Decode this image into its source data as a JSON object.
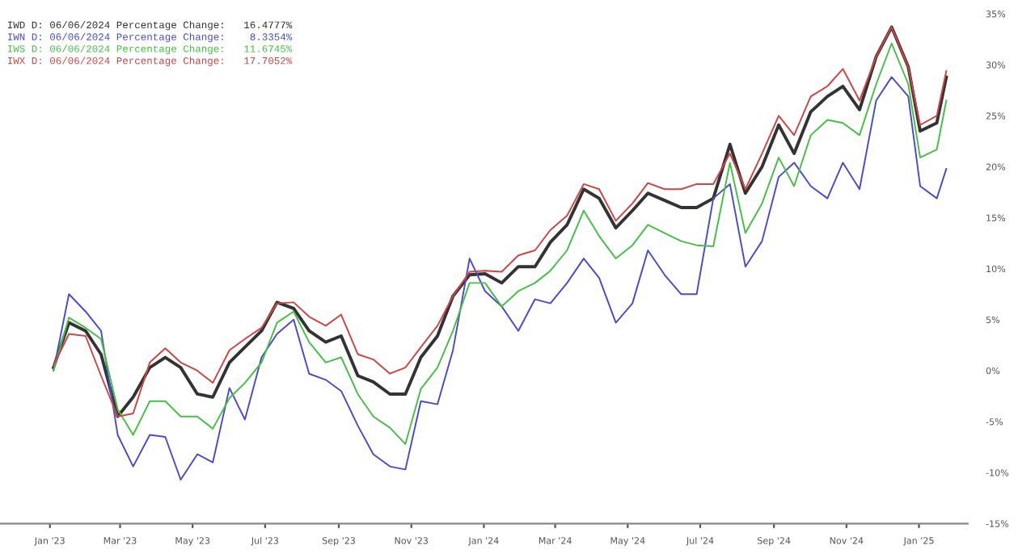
{
  "chart_data": {
    "type": "line",
    "x": [
      "2023-01-04",
      "2023-01-17",
      "2023-01-31",
      "2023-02-13",
      "2023-02-27",
      "2023-03-12",
      "2023-03-26",
      "2023-04-08",
      "2023-04-21",
      "2023-05-05",
      "2023-05-18",
      "2023-06-01",
      "2023-06-14",
      "2023-06-28",
      "2023-07-11",
      "2023-07-25",
      "2023-08-07",
      "2023-08-21",
      "2023-09-03",
      "2023-09-17",
      "2023-09-30",
      "2023-10-14",
      "2023-10-27",
      "2023-11-09",
      "2023-11-23",
      "2023-12-06",
      "2023-12-20",
      "2024-01-02",
      "2024-01-16",
      "2024-01-30",
      "2024-02-13",
      "2024-02-26",
      "2024-03-11",
      "2024-03-25",
      "2024-04-07",
      "2024-04-21",
      "2024-05-05",
      "2024-05-18",
      "2024-06-01",
      "2024-06-15",
      "2024-06-28",
      "2024-07-12",
      "2024-07-26",
      "2024-08-08",
      "2024-08-22",
      "2024-09-05",
      "2024-09-18",
      "2024-10-02",
      "2024-10-16",
      "2024-10-29",
      "2024-11-12",
      "2024-11-26",
      "2024-12-09",
      "2024-12-23",
      "2025-01-02",
      "2025-01-16",
      "2025-01-24"
    ],
    "series": [
      {
        "name": "IWD D: 06/06/2024 Percentage Change:   16.4777%",
        "color": "#333333",
        "values": [
          0.3,
          4.7,
          3.9,
          1.6,
          -4.5,
          -2.6,
          0.3,
          1.3,
          0.3,
          -2.3,
          -2.6,
          0.8,
          2.3,
          3.9,
          6.7,
          6.1,
          3.9,
          2.8,
          3.4,
          -0.5,
          -1.1,
          -2.3,
          -2.3,
          1.3,
          3.4,
          7.3,
          9.4,
          9.5,
          8.6,
          10.2,
          10.2,
          12.6,
          14.3,
          17.8,
          16.9,
          14.0,
          15.7,
          17.4,
          16.7,
          16.0,
          16.0,
          16.9,
          22.2,
          17.4,
          20.0,
          24.1,
          21.3,
          25.4,
          26.9,
          27.9,
          25.6,
          30.8,
          33.7,
          29.8,
          23.5,
          24.3,
          28.8
        ]
      },
      {
        "name": "IWN D: 06/06/2024 Percentage Change:    8.3354%",
        "color": "#4a4ad0",
        "values": [
          0.0,
          7.5,
          5.8,
          3.9,
          -6.3,
          -9.4,
          -6.3,
          -6.5,
          -10.7,
          -8.2,
          -9.0,
          -1.7,
          -4.8,
          1.3,
          3.6,
          5.0,
          -0.3,
          -0.9,
          -2.0,
          -5.4,
          -8.2,
          -9.4,
          -9.7,
          -3.0,
          -3.3,
          2.0,
          11.0,
          7.8,
          6.3,
          3.9,
          7.0,
          6.6,
          8.6,
          11.0,
          9.1,
          4.7,
          6.6,
          11.8,
          9.4,
          7.5,
          7.5,
          16.9,
          18.3,
          10.2,
          12.7,
          19.0,
          20.4,
          18.1,
          16.9,
          20.4,
          17.8,
          26.5,
          28.8,
          26.9,
          18.1,
          16.9,
          19.8
        ]
      },
      {
        "name": "IWS D: 06/06/2024 Percentage Change:   11.6745%",
        "color": "#44c044",
        "values": [
          0.0,
          5.2,
          4.2,
          3.1,
          -3.8,
          -6.3,
          -3.0,
          -3.0,
          -4.5,
          -4.5,
          -5.7,
          -2.7,
          -1.2,
          0.8,
          4.7,
          5.8,
          2.8,
          0.8,
          1.3,
          -2.3,
          -4.5,
          -5.6,
          -7.2,
          -1.8,
          0.3,
          3.9,
          8.6,
          8.6,
          6.3,
          7.8,
          8.6,
          9.8,
          11.8,
          15.7,
          13.2,
          11.0,
          12.3,
          14.3,
          13.5,
          12.7,
          12.3,
          12.2,
          20.4,
          13.5,
          16.4,
          20.9,
          18.1,
          23.1,
          24.6,
          24.3,
          23.1,
          28.1,
          32.1,
          28.1,
          20.9,
          21.7,
          26.5
        ]
      },
      {
        "name": "IWX D: 06/06/2024 Percentage Change:   17.7052%",
        "color": "#d04444",
        "values": [
          0.5,
          3.6,
          3.4,
          -0.5,
          -4.5,
          -4.2,
          0.8,
          2.2,
          0.8,
          0.0,
          -1.2,
          2.0,
          3.1,
          4.2,
          6.6,
          6.7,
          5.3,
          4.4,
          5.5,
          1.6,
          1.1,
          -0.3,
          0.3,
          2.3,
          4.4,
          7.3,
          9.7,
          9.8,
          9.7,
          11.3,
          11.8,
          13.8,
          15.2,
          18.3,
          17.8,
          14.7,
          16.4,
          18.4,
          17.8,
          17.8,
          18.3,
          18.3,
          21.3,
          17.8,
          21.3,
          25.0,
          23.1,
          26.9,
          27.9,
          29.6,
          26.5,
          30.8,
          33.7,
          29.8,
          24.1,
          25.0,
          29.4
        ]
      }
    ],
    "xlim": [
      "2022-11-20",
      "2025-02-11"
    ],
    "xticks": [
      {
        "value": "2023-01-01",
        "label": "Jan '23"
      },
      {
        "value": "2023-03-01",
        "label": "Mar '23"
      },
      {
        "value": "2023-05-01",
        "label": "May '23"
      },
      {
        "value": "2023-07-01",
        "label": "Jul '23"
      },
      {
        "value": "2023-09-01",
        "label": "Sep '23"
      },
      {
        "value": "2023-11-01",
        "label": "Nov '23"
      },
      {
        "value": "2024-01-01",
        "label": "Jan '24"
      },
      {
        "value": "2024-03-01",
        "label": "Mar '24"
      },
      {
        "value": "2024-05-01",
        "label": "May '24"
      },
      {
        "value": "2024-07-01",
        "label": "Jul '24"
      },
      {
        "value": "2024-09-01",
        "label": "Sep '24"
      },
      {
        "value": "2024-11-01",
        "label": "Nov '24"
      },
      {
        "value": "2025-01-01",
        "label": "Jan '25"
      }
    ],
    "ylim": [
      -15,
      35
    ],
    "yticks": [
      {
        "value": -15,
        "label": "-15%"
      },
      {
        "value": -10,
        "label": "-10%"
      },
      {
        "value": -5,
        "label": "-5%"
      },
      {
        "value": 0,
        "label": "0%"
      },
      {
        "value": 5,
        "label": "5%"
      },
      {
        "value": 10,
        "label": "10%"
      },
      {
        "value": 15,
        "label": "15%"
      },
      {
        "value": 20,
        "label": "20%"
      },
      {
        "value": 25,
        "label": "25%"
      },
      {
        "value": 30,
        "label": "30%"
      },
      {
        "value": 35,
        "label": "35%"
      }
    ],
    "grid": false,
    "legend": "top left",
    "line_style": "solid"
  }
}
